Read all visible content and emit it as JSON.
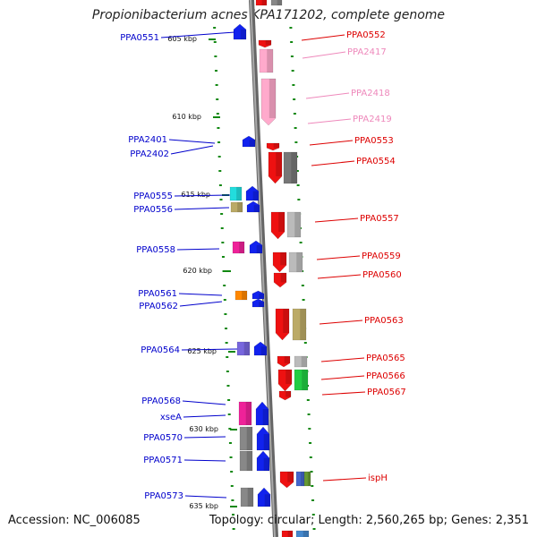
{
  "title": "Propionibacterium acnes KPA171202, complete genome",
  "footer": {
    "accession": "Accession: NC_006085",
    "summary": "Topology: circular; Length: 2,560,265 bp; Genes: 2,351"
  },
  "scale_ticks": [
    "605 kbp",
    "610 kbp",
    "615 kbp",
    "620 kbp",
    "625 kbp",
    "630 kbp",
    "635 kbp"
  ],
  "colors": {
    "left_labels": "#0000cc",
    "right_labels": "#dd0000",
    "pink_labels": "#ee88bb",
    "backbone": "#888888",
    "dots": "#118811"
  },
  "left_genes": [
    "PPA0551",
    "PPA2401",
    "PPA2402",
    "PPA0555",
    "PPA0556",
    "PPA0558",
    "PPA0561",
    "PPA0562",
    "PPA0564",
    "PPA0568",
    "xseA",
    "PPA0570",
    "PPA0571",
    "PPA0573"
  ],
  "right_genes": [
    "PPA0552",
    "PPA2417",
    "PPA2418",
    "PPA2419",
    "PPA0553",
    "PPA0554",
    "PPA0557",
    "PPA0559",
    "PPA0560",
    "PPA0563",
    "PPA0565",
    "PPA0566",
    "PPA0567",
    "ispH"
  ]
}
